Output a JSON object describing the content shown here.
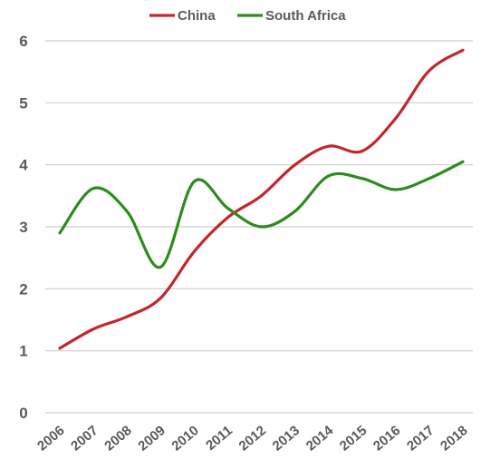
{
  "chart_data": {
    "type": "line",
    "title": "",
    "xlabel": "",
    "ylabel": "",
    "x": [
      "2006",
      "2007",
      "2008",
      "2009",
      "2010",
      "2011",
      "2012",
      "2013",
      "2014",
      "2015",
      "2016",
      "2017",
      "2018"
    ],
    "ylim": [
      0,
      6
    ],
    "yticks": [
      "0",
      "1",
      "2",
      "3",
      "4",
      "5",
      "6"
    ],
    "grid": true,
    "legend_position": "top-center",
    "series": [
      {
        "name": "China",
        "color": "#c1272d",
        "values": [
          1.04,
          1.35,
          1.55,
          1.85,
          2.6,
          3.15,
          3.5,
          4.0,
          4.3,
          4.22,
          4.75,
          5.52,
          5.85
        ]
      },
      {
        "name": "South Africa",
        "color": "#2e8b1f",
        "values": [
          2.9,
          3.62,
          3.25,
          2.35,
          3.73,
          3.3,
          3.0,
          3.25,
          3.82,
          3.78,
          3.6,
          3.78,
          4.05
        ]
      }
    ]
  }
}
